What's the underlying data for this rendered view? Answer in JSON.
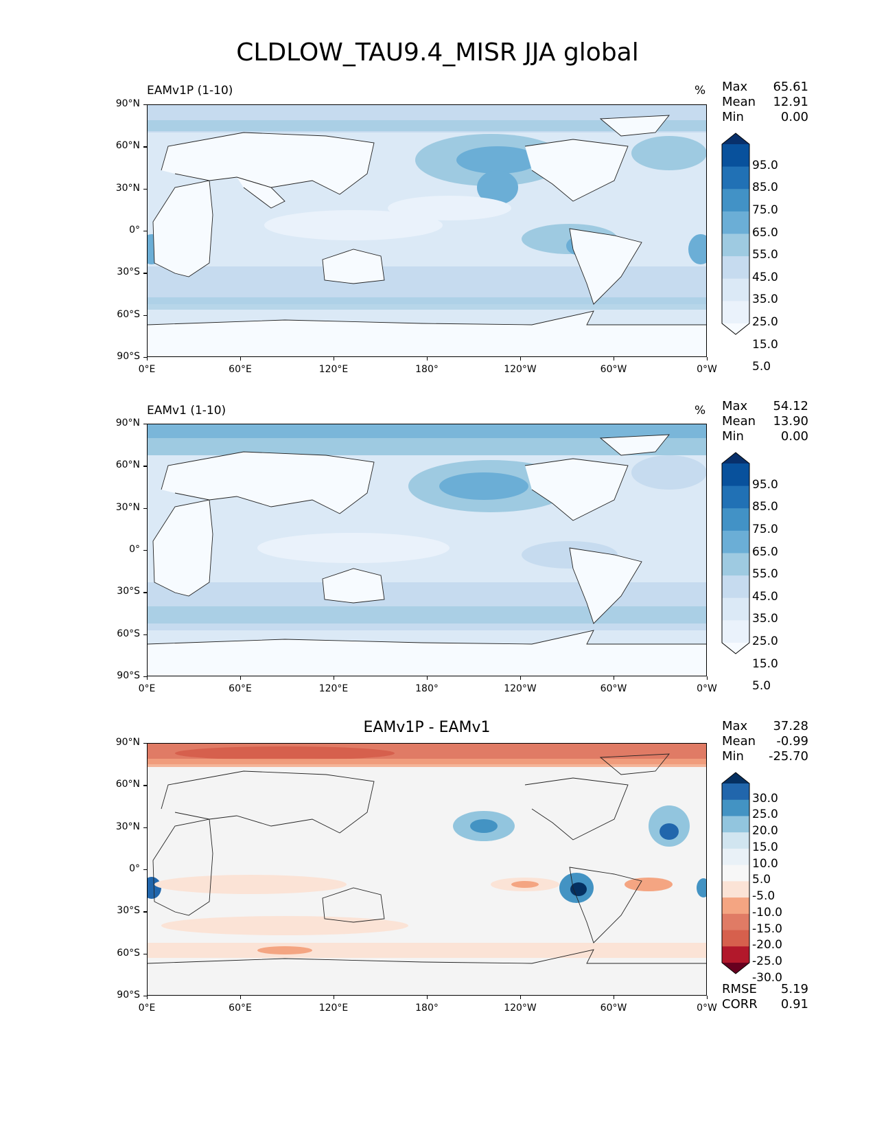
{
  "title": "CLDLOW_TAU9.4_MISR JJA global",
  "axes": {
    "y_ticks": [
      "90°N",
      "60°N",
      "30°N",
      "0°",
      "30°S",
      "60°S",
      "90°S"
    ],
    "x_ticks": [
      "0°E",
      "60°E",
      "120°E",
      "180°",
      "120°W",
      "60°W",
      "0°W"
    ]
  },
  "panels": [
    {
      "id": "eamv1p",
      "left_label": "EAMv1P (1-10)",
      "units": "%",
      "stats": {
        "max_label": "Max",
        "max": "65.61",
        "mean_label": "Mean",
        "mean": "12.91",
        "min_label": "Min",
        "min": "0.00"
      },
      "colorbar": {
        "labels": [
          "95.0",
          "85.0",
          "75.0",
          "65.0",
          "55.0",
          "45.0",
          "35.0",
          "25.0",
          "15.0",
          "5.0"
        ],
        "colors": [
          "#08306b",
          "#08519c",
          "#2171b5",
          "#4292c6",
          "#6baed6",
          "#9ecae1",
          "#c6dbef",
          "#dbe9f6",
          "#eaf2fb",
          "#f7fbff"
        ]
      }
    },
    {
      "id": "eamv1",
      "left_label": "EAMv1 (1-10)",
      "units": "%",
      "stats": {
        "max_label": "Max",
        "max": "54.12",
        "mean_label": "Mean",
        "mean": "13.90",
        "min_label": "Min",
        "min": "0.00"
      },
      "colorbar": {
        "labels": [
          "95.0",
          "85.0",
          "75.0",
          "65.0",
          "55.0",
          "45.0",
          "35.0",
          "25.0",
          "15.0",
          "5.0"
        ],
        "colors": [
          "#08306b",
          "#08519c",
          "#2171b5",
          "#4292c6",
          "#6baed6",
          "#9ecae1",
          "#c6dbef",
          "#dbe9f6",
          "#eaf2fb",
          "#f7fbff"
        ]
      }
    },
    {
      "id": "diff",
      "center_title": "EAMv1P - EAMv1",
      "stats": {
        "max_label": "Max",
        "max": "37.28",
        "mean_label": "Mean",
        "mean": "-0.99",
        "min_label": "Min",
        "min": "-25.70"
      },
      "colorbar": {
        "labels": [
          "30.0",
          "25.0",
          "20.0",
          "15.0",
          "10.0",
          "5.0",
          "-5.0",
          "-10.0",
          "-15.0",
          "-20.0",
          "-25.0",
          "-30.0"
        ],
        "colors": [
          "#053061",
          "#2166ac",
          "#4393c3",
          "#92c5de",
          "#d1e5f0",
          "#e9f1f7",
          "#f7f7f7",
          "#fbe3d6",
          "#f4a582",
          "#e07b65",
          "#d6604d",
          "#b2182b",
          "#67001f"
        ]
      },
      "error_stats": {
        "rmse_label": "RMSE",
        "rmse": "5.19",
        "corr_label": "CORR",
        "corr": "0.91"
      }
    }
  ]
}
